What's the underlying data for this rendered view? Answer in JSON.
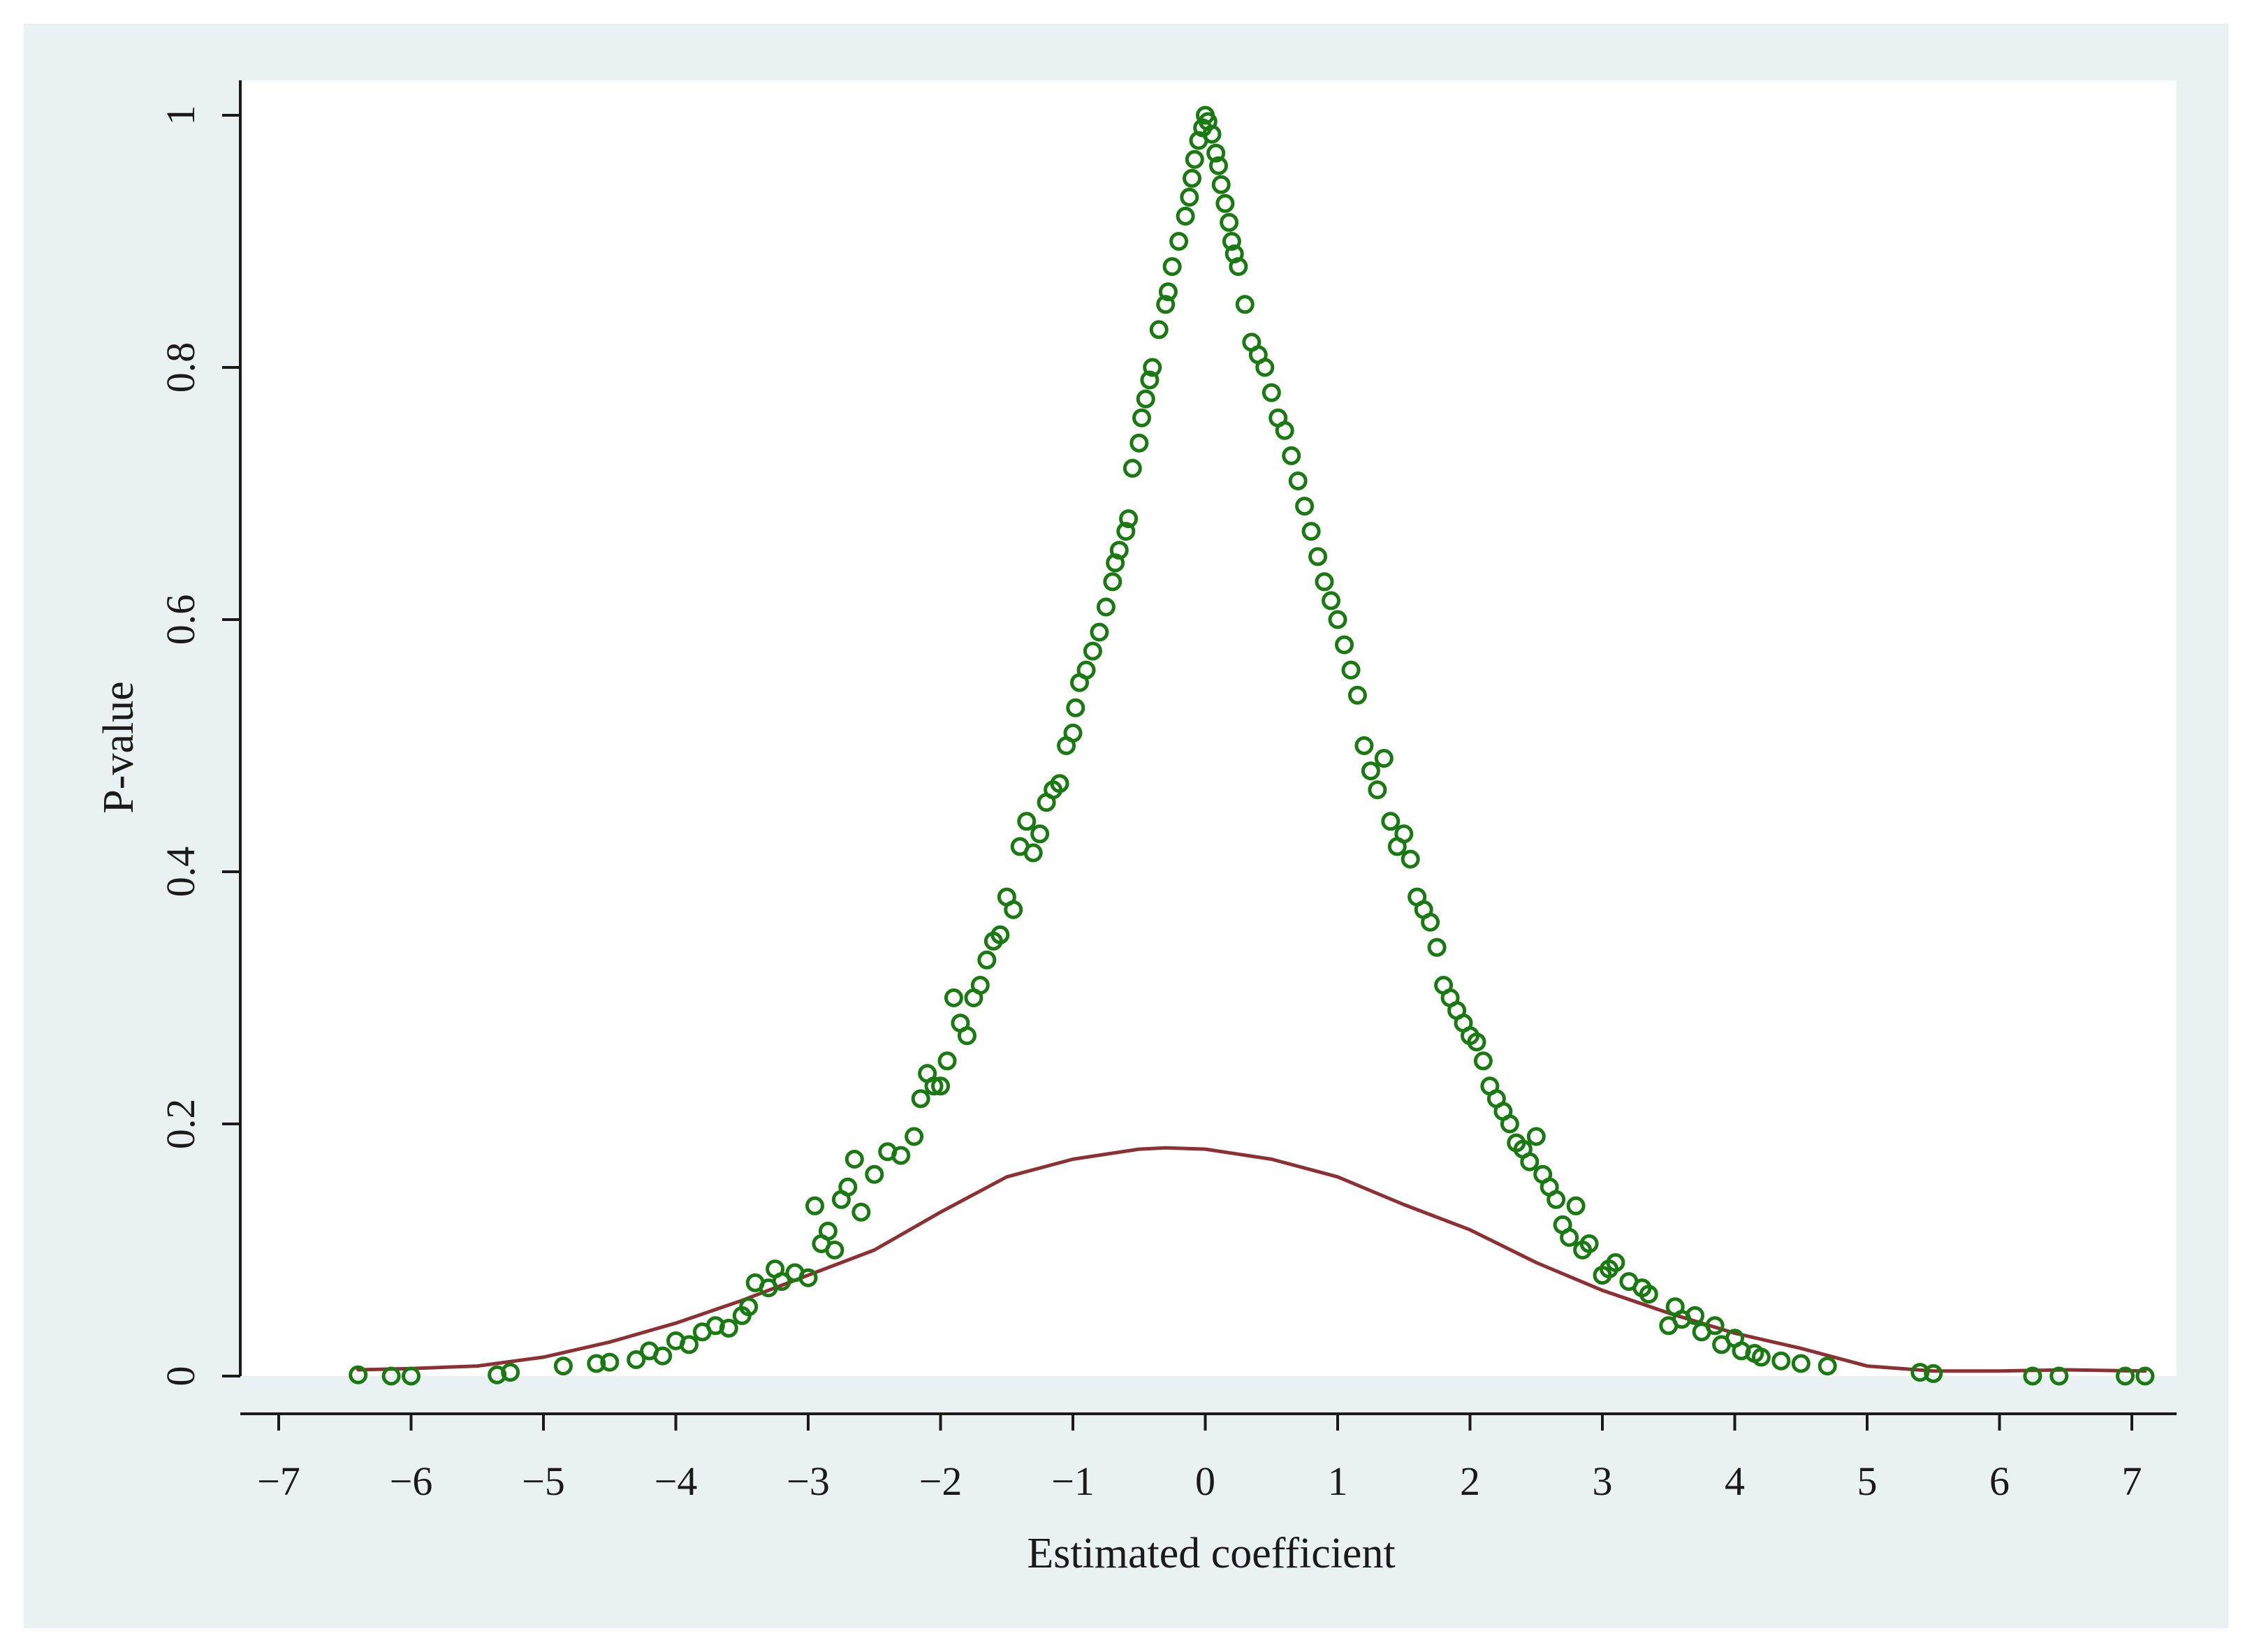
{
  "chart_data": {
    "type": "scatter",
    "title": "",
    "xlabel": "Estimated coefficient",
    "ylabel": "P-value",
    "xlim": [
      -7,
      7
    ],
    "ylim": [
      0,
      1
    ],
    "x_ticks": [
      -7,
      -6,
      -5,
      -4,
      -3,
      -2,
      -1,
      0,
      1,
      2,
      3,
      4,
      5,
      6,
      7
    ],
    "y_ticks": [
      0,
      0.2,
      0.4,
      0.6,
      0.8,
      1
    ],
    "grid": false,
    "legend": "none",
    "colors": {
      "outer_background": "#eaf1f3",
      "plot_background": "#ffffff",
      "scatter": "#1a7a12",
      "line": "#8e2f33",
      "axis": "#1a1a1a"
    },
    "series": [
      {
        "kind": "scatter",
        "marker": "hollow-circle",
        "points": [
          [
            -6.4,
            0.001
          ],
          [
            -6.15,
            0.0
          ],
          [
            -6.0,
            0.0
          ],
          [
            -5.35,
            0.001
          ],
          [
            -5.25,
            0.003
          ],
          [
            -4.85,
            0.008
          ],
          [
            -4.6,
            0.01
          ],
          [
            -4.5,
            0.011
          ],
          [
            -4.3,
            0.013
          ],
          [
            -4.2,
            0.02
          ],
          [
            -4.1,
            0.016
          ],
          [
            -4.0,
            0.028
          ],
          [
            -3.9,
            0.025
          ],
          [
            -3.8,
            0.035
          ],
          [
            -3.7,
            0.04
          ],
          [
            -3.6,
            0.038
          ],
          [
            -3.5,
            0.048
          ],
          [
            -3.45,
            0.055
          ],
          [
            -3.4,
            0.074
          ],
          [
            -3.3,
            0.07
          ],
          [
            -3.25,
            0.085
          ],
          [
            -3.2,
            0.075
          ],
          [
            -3.1,
            0.082
          ],
          [
            -3.0,
            0.078
          ],
          [
            -2.95,
            0.135
          ],
          [
            -2.9,
            0.105
          ],
          [
            -2.85,
            0.115
          ],
          [
            -2.8,
            0.1
          ],
          [
            -2.75,
            0.14
          ],
          [
            -2.7,
            0.15
          ],
          [
            -2.65,
            0.172
          ],
          [
            -2.6,
            0.13
          ],
          [
            -2.5,
            0.16
          ],
          [
            -2.4,
            0.178
          ],
          [
            -2.3,
            0.175
          ],
          [
            -2.2,
            0.19
          ],
          [
            -2.15,
            0.22
          ],
          [
            -2.1,
            0.24
          ],
          [
            -2.05,
            0.23
          ],
          [
            -2.0,
            0.23
          ],
          [
            -1.95,
            0.25
          ],
          [
            -1.9,
            0.3
          ],
          [
            -1.85,
            0.28
          ],
          [
            -1.8,
            0.27
          ],
          [
            -1.75,
            0.3
          ],
          [
            -1.7,
            0.31
          ],
          [
            -1.65,
            0.33
          ],
          [
            -1.6,
            0.345
          ],
          [
            -1.55,
            0.35
          ],
          [
            -1.5,
            0.38
          ],
          [
            -1.45,
            0.37
          ],
          [
            -1.4,
            0.42
          ],
          [
            -1.35,
            0.44
          ],
          [
            -1.3,
            0.415
          ],
          [
            -1.25,
            0.43
          ],
          [
            -1.2,
            0.455
          ],
          [
            -1.15,
            0.465
          ],
          [
            -1.1,
            0.47
          ],
          [
            -1.05,
            0.5
          ],
          [
            -1.0,
            0.51
          ],
          [
            -0.98,
            0.53
          ],
          [
            -0.95,
            0.55
          ],
          [
            -0.9,
            0.56
          ],
          [
            -0.85,
            0.575
          ],
          [
            -0.8,
            0.59
          ],
          [
            -0.75,
            0.61
          ],
          [
            -0.7,
            0.63
          ],
          [
            -0.68,
            0.645
          ],
          [
            -0.65,
            0.655
          ],
          [
            -0.6,
            0.67
          ],
          [
            -0.58,
            0.68
          ],
          [
            -0.55,
            0.72
          ],
          [
            -0.5,
            0.74
          ],
          [
            -0.48,
            0.76
          ],
          [
            -0.45,
            0.775
          ],
          [
            -0.42,
            0.79
          ],
          [
            -0.4,
            0.8
          ],
          [
            -0.35,
            0.83
          ],
          [
            -0.3,
            0.85
          ],
          [
            -0.28,
            0.86
          ],
          [
            -0.25,
            0.88
          ],
          [
            -0.2,
            0.9
          ],
          [
            -0.15,
            0.92
          ],
          [
            -0.12,
            0.935
          ],
          [
            -0.1,
            0.95
          ],
          [
            -0.08,
            0.965
          ],
          [
            -0.05,
            0.98
          ],
          [
            -0.02,
            0.99
          ],
          [
            0.0,
            1.0
          ],
          [
            0.02,
            0.995
          ],
          [
            0.05,
            0.985
          ],
          [
            0.08,
            0.97
          ],
          [
            0.1,
            0.96
          ],
          [
            0.12,
            0.945
          ],
          [
            0.15,
            0.93
          ],
          [
            0.18,
            0.915
          ],
          [
            0.2,
            0.9
          ],
          [
            0.22,
            0.89
          ],
          [
            0.25,
            0.88
          ],
          [
            0.3,
            0.85
          ],
          [
            0.35,
            0.82
          ],
          [
            0.4,
            0.81
          ],
          [
            0.45,
            0.8
          ],
          [
            0.5,
            0.78
          ],
          [
            0.55,
            0.76
          ],
          [
            0.6,
            0.75
          ],
          [
            0.65,
            0.73
          ],
          [
            0.7,
            0.71
          ],
          [
            0.75,
            0.69
          ],
          [
            0.8,
            0.67
          ],
          [
            0.85,
            0.65
          ],
          [
            0.9,
            0.63
          ],
          [
            0.95,
            0.615
          ],
          [
            1.0,
            0.6
          ],
          [
            1.05,
            0.58
          ],
          [
            1.1,
            0.56
          ],
          [
            1.15,
            0.54
          ],
          [
            1.2,
            0.5
          ],
          [
            1.25,
            0.48
          ],
          [
            1.3,
            0.465
          ],
          [
            1.35,
            0.49
          ],
          [
            1.4,
            0.44
          ],
          [
            1.45,
            0.42
          ],
          [
            1.5,
            0.43
          ],
          [
            1.55,
            0.41
          ],
          [
            1.6,
            0.38
          ],
          [
            1.65,
            0.37
          ],
          [
            1.7,
            0.36
          ],
          [
            1.75,
            0.34
          ],
          [
            1.8,
            0.31
          ],
          [
            1.85,
            0.3
          ],
          [
            1.9,
            0.29
          ],
          [
            1.95,
            0.28
          ],
          [
            2.0,
            0.27
          ],
          [
            2.05,
            0.265
          ],
          [
            2.1,
            0.25
          ],
          [
            2.15,
            0.23
          ],
          [
            2.2,
            0.22
          ],
          [
            2.25,
            0.21
          ],
          [
            2.3,
            0.2
          ],
          [
            2.35,
            0.185
          ],
          [
            2.4,
            0.18
          ],
          [
            2.45,
            0.17
          ],
          [
            2.5,
            0.19
          ],
          [
            2.55,
            0.16
          ],
          [
            2.6,
            0.15
          ],
          [
            2.65,
            0.14
          ],
          [
            2.7,
            0.12
          ],
          [
            2.75,
            0.11
          ],
          [
            2.8,
            0.135
          ],
          [
            2.85,
            0.1
          ],
          [
            2.9,
            0.105
          ],
          [
            3.0,
            0.08
          ],
          [
            3.05,
            0.085
          ],
          [
            3.1,
            0.09
          ],
          [
            3.2,
            0.075
          ],
          [
            3.3,
            0.07
          ],
          [
            3.35,
            0.065
          ],
          [
            3.5,
            0.04
          ],
          [
            3.55,
            0.055
          ],
          [
            3.6,
            0.045
          ],
          [
            3.7,
            0.048
          ],
          [
            3.75,
            0.035
          ],
          [
            3.85,
            0.04
          ],
          [
            3.9,
            0.025
          ],
          [
            4.0,
            0.03
          ],
          [
            4.05,
            0.02
          ],
          [
            4.15,
            0.018
          ],
          [
            4.2,
            0.015
          ],
          [
            4.35,
            0.012
          ],
          [
            4.5,
            0.01
          ],
          [
            4.7,
            0.008
          ],
          [
            5.4,
            0.003
          ],
          [
            5.5,
            0.002
          ],
          [
            6.25,
            0.0
          ],
          [
            6.45,
            0.0
          ],
          [
            6.95,
            0.0
          ],
          [
            7.1,
            0.0
          ]
        ]
      },
      {
        "kind": "line",
        "points": [
          [
            -6.4,
            0.005
          ],
          [
            -6.0,
            0.006
          ],
          [
            -5.5,
            0.008
          ],
          [
            -5.0,
            0.015
          ],
          [
            -4.5,
            0.027
          ],
          [
            -4.0,
            0.042
          ],
          [
            -3.5,
            0.06
          ],
          [
            -3.0,
            0.08
          ],
          [
            -2.5,
            0.1
          ],
          [
            -2.0,
            0.13
          ],
          [
            -1.5,
            0.158
          ],
          [
            -1.0,
            0.172
          ],
          [
            -0.5,
            0.18
          ],
          [
            -0.3,
            0.181
          ],
          [
            0.0,
            0.18
          ],
          [
            0.5,
            0.172
          ],
          [
            1.0,
            0.158
          ],
          [
            1.5,
            0.136
          ],
          [
            2.0,
            0.116
          ],
          [
            2.5,
            0.09
          ],
          [
            3.0,
            0.068
          ],
          [
            3.5,
            0.05
          ],
          [
            4.0,
            0.034
          ],
          [
            4.5,
            0.022
          ],
          [
            5.0,
            0.008
          ],
          [
            5.5,
            0.004
          ],
          [
            6.0,
            0.004
          ],
          [
            6.5,
            0.005
          ],
          [
            7.1,
            0.004
          ]
        ]
      }
    ]
  }
}
